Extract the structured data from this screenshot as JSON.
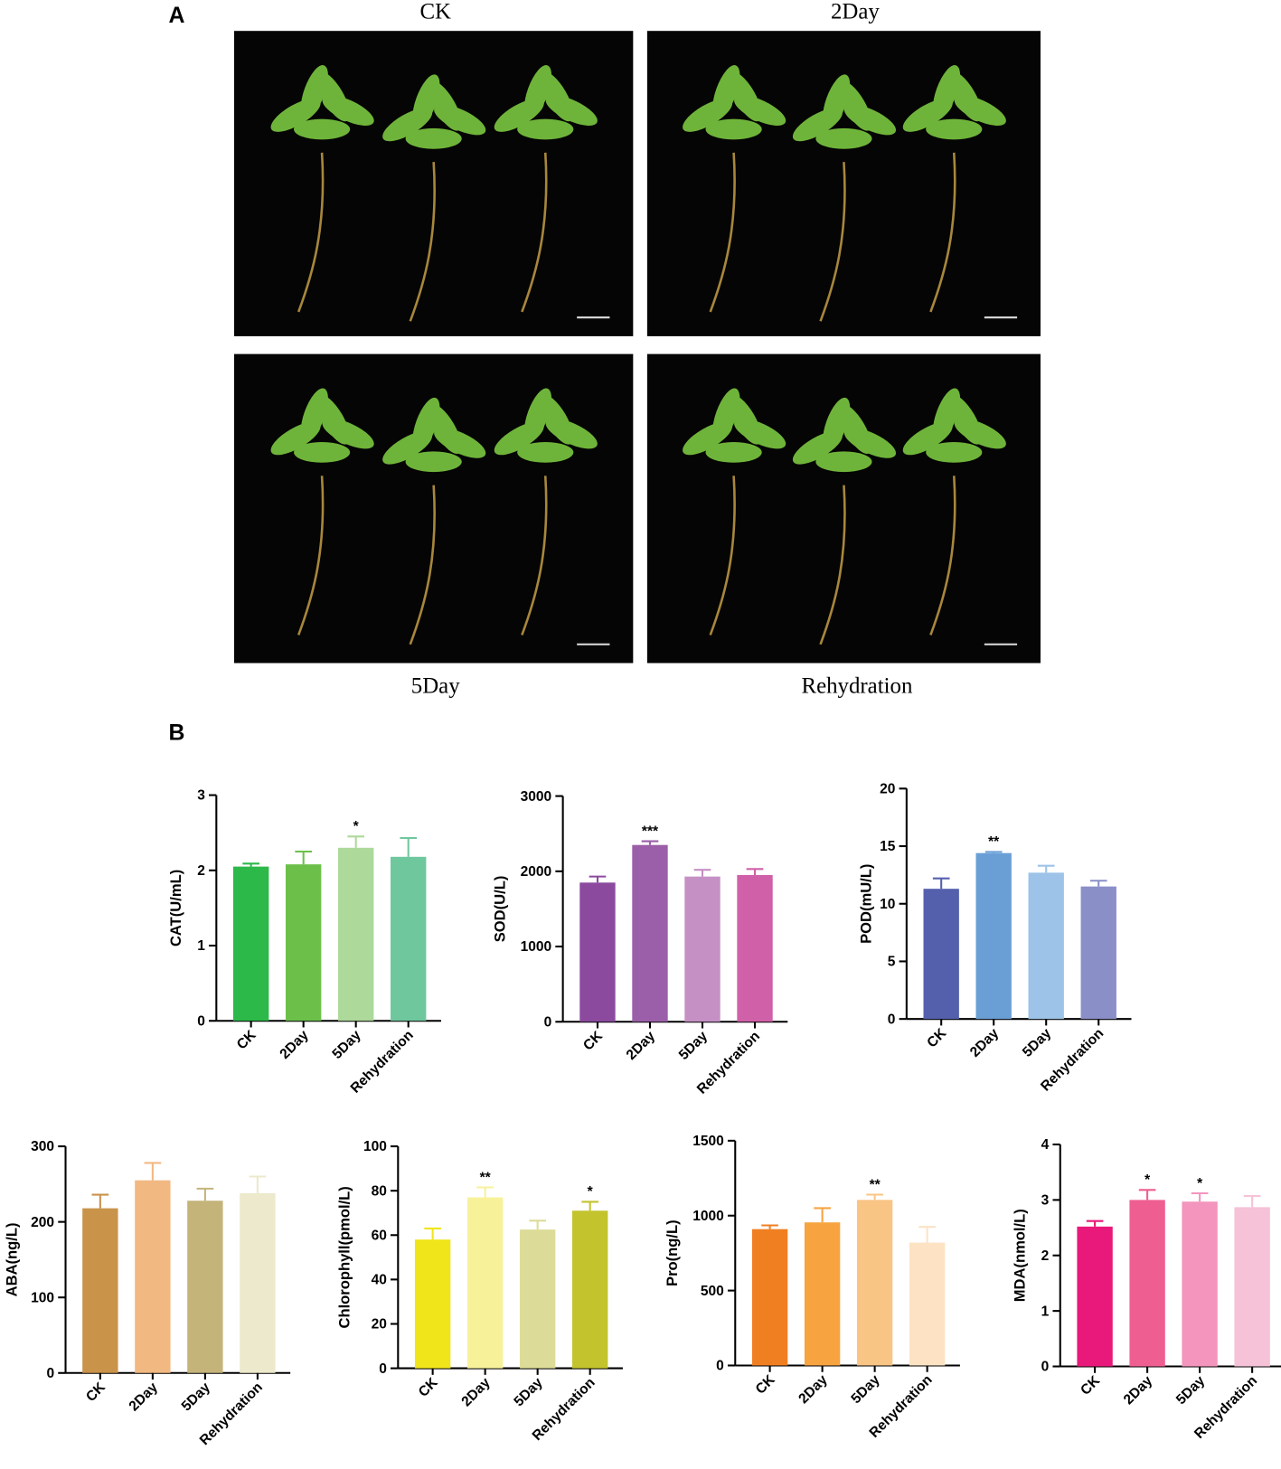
{
  "figure": {
    "panel_a": {
      "label": "A",
      "photos": [
        "CK",
        "2Day",
        "5Day",
        "Rehydration"
      ]
    },
    "panel_b_label": "B"
  },
  "chart_data": [
    {
      "type": "bar",
      "ylabel": "CAT(U/mL)",
      "categories": [
        "CK",
        "2Day",
        "5Day",
        "Rehydration"
      ],
      "values": [
        2.05,
        2.08,
        2.3,
        2.18
      ],
      "errors": [
        0.04,
        0.17,
        0.15,
        0.25
      ],
      "significance": [
        null,
        null,
        "*",
        null
      ],
      "colors": [
        "#2db84a",
        "#6cc04a",
        "#add99a",
        "#6fc79e"
      ],
      "ylim": [
        0,
        3
      ],
      "yticks": [
        0,
        1,
        2,
        3
      ]
    },
    {
      "type": "bar",
      "ylabel": "SOD(U/L)",
      "categories": [
        "CK",
        "2Day",
        "5Day",
        "Rehydration"
      ],
      "values": [
        1850,
        2350,
        1930,
        1950
      ],
      "errors": [
        80,
        50,
        90,
        80
      ],
      "significance": [
        null,
        "***",
        null,
        null
      ],
      "colors": [
        "#8b4a9e",
        "#9b5ea8",
        "#c590c4",
        "#d060a8"
      ],
      "ylim": [
        0,
        3000
      ],
      "yticks": [
        0,
        1000,
        2000,
        3000
      ]
    },
    {
      "type": "bar",
      "ylabel": "POD(mU/L)",
      "categories": [
        "CK",
        "2Day",
        "5Day",
        "Rehydration"
      ],
      "values": [
        11.3,
        14.4,
        12.7,
        11.5
      ],
      "errors": [
        0.9,
        0.1,
        0.6,
        0.5
      ],
      "significance": [
        null,
        "**",
        null,
        null
      ],
      "colors": [
        "#5560ad",
        "#6a9fd6",
        "#9dc3e8",
        "#8a8fc8"
      ],
      "ylim": [
        0,
        20
      ],
      "yticks": [
        0,
        5,
        10,
        15,
        20
      ]
    },
    {
      "type": "bar",
      "ylabel": "ABA(ng/L)",
      "categories": [
        "CK",
        "2Day",
        "5Day",
        "Rehydration"
      ],
      "values": [
        218,
        255,
        228,
        238
      ],
      "errors": [
        18,
        23,
        16,
        22
      ],
      "significance": [
        null,
        null,
        null,
        null
      ],
      "colors": [
        "#c9934a",
        "#f2b882",
        "#c4b47a",
        "#ece9cc"
      ],
      "ylim": [
        0,
        300
      ],
      "yticks": [
        0,
        100,
        200,
        300
      ]
    },
    {
      "type": "bar",
      "ylabel": "Chlorophyll(pmol/L)",
      "categories": [
        "CK",
        "2Day",
        "5Day",
        "Rehydration"
      ],
      "values": [
        58,
        77,
        62.5,
        71
      ],
      "errors": [
        5,
        4.5,
        4,
        4
      ],
      "significance": [
        null,
        "**",
        null,
        "*"
      ],
      "colors": [
        "#f0e51a",
        "#f7f29a",
        "#dcdc98",
        "#c3c32e"
      ],
      "ylim": [
        0,
        100
      ],
      "yticks": [
        0,
        20,
        40,
        60,
        80,
        100
      ]
    },
    {
      "type": "bar",
      "ylabel": "Pro(ng/L)",
      "categories": [
        "CK",
        "2Day",
        "5Day",
        "Rehydration"
      ],
      "values": [
        910,
        955,
        1105,
        820
      ],
      "errors": [
        25,
        95,
        35,
        105
      ],
      "significance": [
        null,
        null,
        "**",
        null
      ],
      "colors": [
        "#f07f22",
        "#f7a440",
        "#f9c585",
        "#fde3c4"
      ],
      "ylim": [
        0,
        1500
      ],
      "yticks": [
        0,
        500,
        1000,
        1500
      ]
    },
    {
      "type": "bar",
      "ylabel": "MDA(nmol/L)",
      "categories": [
        "CK",
        "2Day",
        "5Day",
        "Rehydration"
      ],
      "values": [
        2.52,
        3.0,
        2.97,
        2.87
      ],
      "errors": [
        0.1,
        0.18,
        0.15,
        0.2
      ],
      "significance": [
        null,
        "*",
        "*",
        null
      ],
      "colors": [
        "#e8197a",
        "#ef5e91",
        "#f395bd",
        "#f5c2d8"
      ],
      "ylim": [
        0,
        4
      ],
      "yticks": [
        0,
        1,
        2,
        3,
        4
      ]
    }
  ]
}
